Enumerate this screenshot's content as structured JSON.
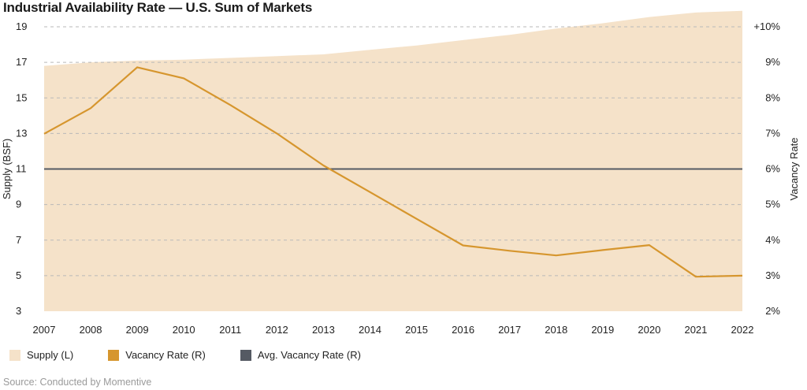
{
  "chart_data": {
    "type": "area",
    "title": "Industrial Availability Rate — U.S. Sum of Markets",
    "x": [
      "2007",
      "2008",
      "2009",
      "2010",
      "2011",
      "2012",
      "2013",
      "2014",
      "2015",
      "2016",
      "2017",
      "2018",
      "2019",
      "2020",
      "2021",
      "2022"
    ],
    "ylabel_left": "Supply (BSF)",
    "ylabel_right": "Vacancy Rate",
    "yticks_left": [
      "19",
      "17",
      "15",
      "13",
      "11",
      "9",
      "7",
      "5",
      "3"
    ],
    "yticks_right": [
      "+10%",
      "9%",
      "8%",
      "7%",
      "6%",
      "5%",
      "4%",
      "3%",
      "2%"
    ],
    "ylim_left": [
      3,
      19
    ],
    "ylim_right": [
      2,
      10
    ],
    "grid": "dashed horizontal",
    "legend_position": "bottom",
    "series": [
      {
        "name": "Supply (L)",
        "type": "area",
        "axis": "left",
        "color": "#f5e2c9",
        "values": [
          16.8,
          17.0,
          17.1,
          17.15,
          17.25,
          17.35,
          17.45,
          17.7,
          17.95,
          18.25,
          18.55,
          18.9,
          19.2,
          19.55,
          19.8,
          19.9
        ]
      },
      {
        "name": "Vacancy Rate (R)",
        "type": "line",
        "axis": "right",
        "color": "#d6962e",
        "values": [
          6.99,
          7.71,
          8.86,
          8.55,
          7.8,
          7.0,
          6.1,
          5.35,
          4.6,
          3.85,
          3.7,
          3.57,
          3.72,
          3.86,
          2.97,
          3.0
        ]
      },
      {
        "name": "Avg. Vacancy Rate (R)",
        "type": "line",
        "axis": "right",
        "color": "#555a63",
        "values": [
          6.0,
          6.0,
          6.0,
          6.0,
          6.0,
          6.0,
          6.0,
          6.0,
          6.0,
          6.0,
          6.0,
          6.0,
          6.0,
          6.0,
          6.0,
          6.0
        ]
      }
    ],
    "source": "Source: Conducted by Momentive"
  }
}
